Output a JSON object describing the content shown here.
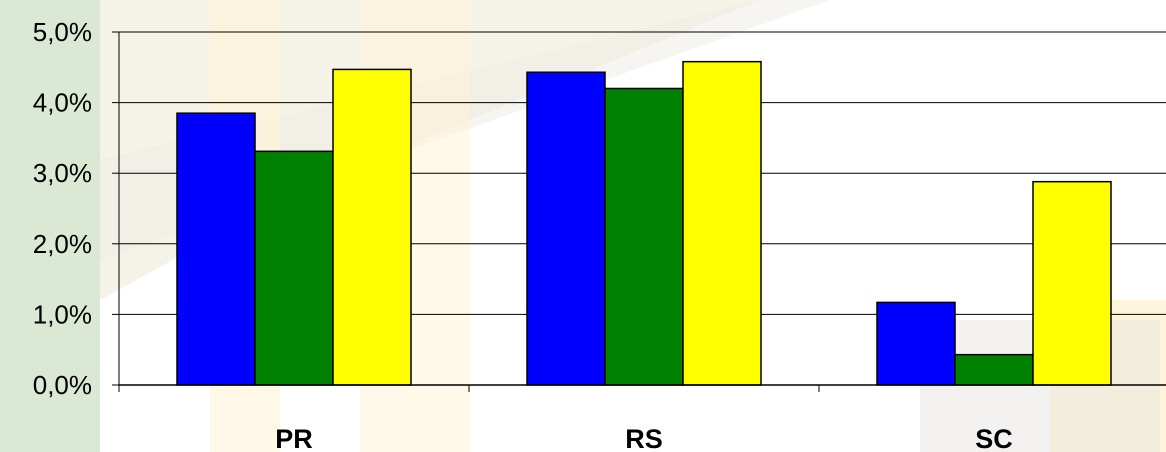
{
  "chart_data": {
    "type": "bar",
    "categories": [
      "PR",
      "RS",
      "SC"
    ],
    "series": [
      {
        "values": [
          3.85,
          4.43,
          1.17
        ],
        "color": "#0000ff"
      },
      {
        "values": [
          3.31,
          4.2,
          0.43
        ],
        "color": "#008000"
      },
      {
        "values": [
          4.47,
          4.58,
          2.88
        ],
        "color": "#ffff00"
      }
    ],
    "yticks": [
      "0,0%",
      "1,0%",
      "2,0%",
      "3,0%",
      "4,0%",
      "5,0%"
    ],
    "ylim": [
      0,
      5
    ],
    "grid": true,
    "legend": "none"
  },
  "colors": {
    "left_strip": "#dbe8d4",
    "background_overlay": "#fff6dc"
  }
}
